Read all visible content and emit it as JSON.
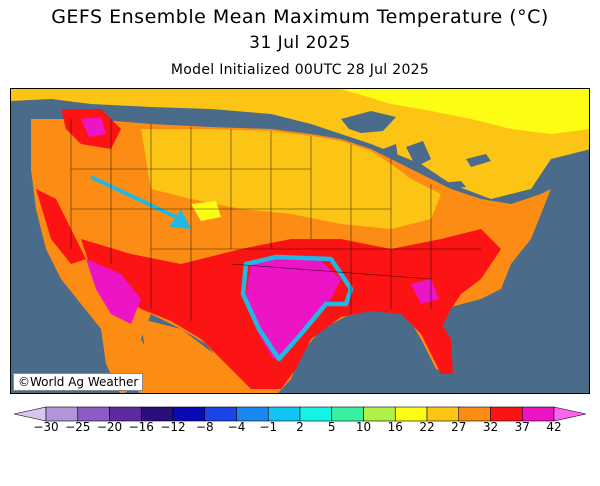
{
  "header": {
    "title": "GEFS Ensemble Mean Maximum Temperature (°C)",
    "date": "31 Jul 2025",
    "init": "Model Initialized 00UTC 28 Jul 2025"
  },
  "map": {
    "credit": "©World Ag Weather",
    "ocean_color": "#4b6b8a",
    "annotation_color": "#22b8e6",
    "annotations": [
      "arrow pointing to Colorado",
      "outline around Texas/Oklahoma heat"
    ]
  },
  "legend": {
    "ticks": [
      "-30",
      "-25",
      "-20",
      "-16",
      "-12",
      "-8",
      "-4",
      "-1",
      "2",
      "5",
      "10",
      "16",
      "22",
      "27",
      "32",
      "37",
      "42"
    ],
    "colors": [
      "#d8c6ee",
      "#b096d8",
      "#8a5cc4",
      "#5e2aa0",
      "#2a0e7a",
      "#0a0ab4",
      "#1a44e8",
      "#1a86f0",
      "#12c4f6",
      "#14f4e4",
      "#38f0a0",
      "#b0f048",
      "#fcfc14",
      "#fcc414",
      "#fc8c14",
      "#fc1414",
      "#ec14c4",
      "#fc64f0"
    ]
  }
}
